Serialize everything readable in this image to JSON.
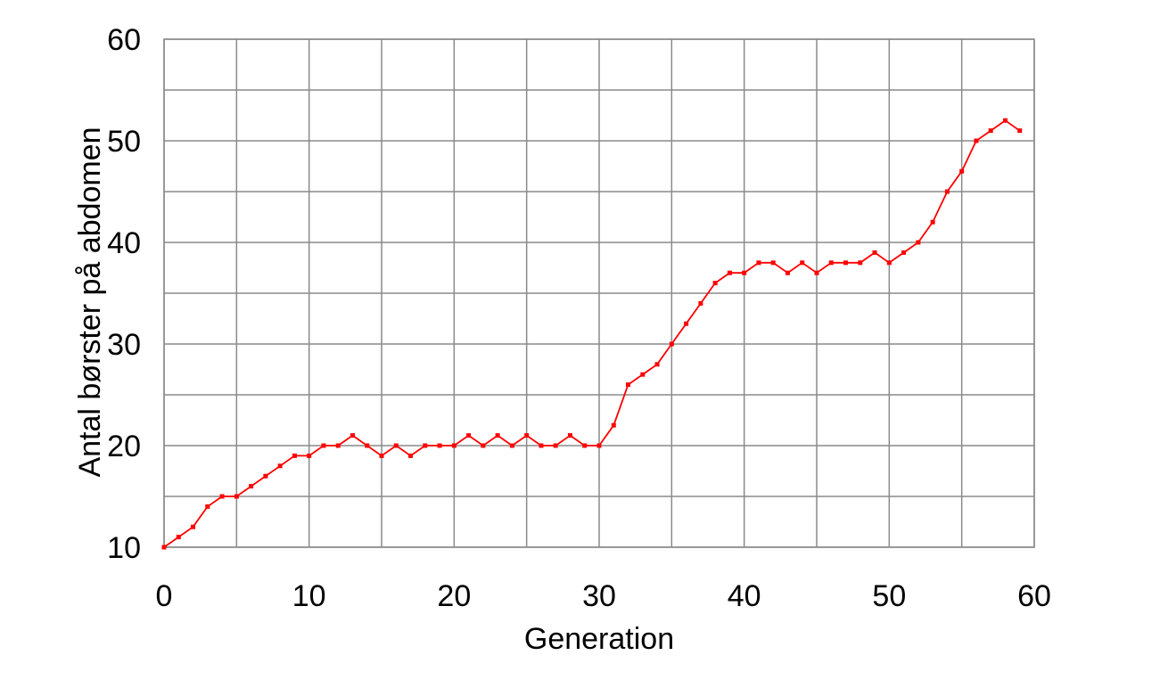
{
  "chart_data": {
    "type": "line",
    "title": "",
    "xlabel": "Generation",
    "ylabel": "Antal børster på abdomen",
    "xlim": [
      0,
      60
    ],
    "ylim": [
      10,
      60
    ],
    "x_ticks": [
      0,
      10,
      20,
      30,
      40,
      50,
      60
    ],
    "y_ticks": [
      10,
      20,
      30,
      40,
      50,
      60
    ],
    "x_tick_labels": [
      "0",
      "10",
      "20",
      "30",
      "40",
      "50",
      "60"
    ],
    "y_tick_labels": [
      "10",
      "20",
      "30",
      "40",
      "50",
      "60"
    ],
    "x_minor_step": 5,
    "y_minor_step": 5,
    "grid": true,
    "legend": "none",
    "series": [
      {
        "color": "#ff0000",
        "marker": "square",
        "x": [
          0,
          1,
          2,
          3,
          4,
          5,
          6,
          7,
          8,
          9,
          10,
          11,
          12,
          13,
          14,
          15,
          16,
          17,
          18,
          19,
          20,
          21,
          22,
          23,
          24,
          25,
          26,
          27,
          28,
          29,
          30,
          31,
          32,
          33,
          34,
          35,
          36,
          37,
          38,
          39,
          40,
          41,
          42,
          43,
          44,
          45,
          46,
          47,
          48,
          49,
          50,
          51,
          52,
          53,
          54,
          55,
          56,
          57,
          58,
          59
        ],
        "values": [
          10,
          11,
          12,
          14,
          15,
          15,
          16,
          17,
          18,
          19,
          19,
          20,
          20,
          21,
          20,
          19,
          20,
          19,
          20,
          20,
          20,
          21,
          20,
          21,
          20,
          21,
          20,
          20,
          21,
          20,
          20,
          22,
          26,
          27,
          28,
          30,
          32,
          34,
          36,
          37,
          37,
          38,
          38,
          37,
          38,
          37,
          38,
          38,
          38,
          39,
          38,
          39,
          40,
          42,
          45,
          47,
          50,
          51,
          52,
          51
        ]
      }
    ]
  }
}
